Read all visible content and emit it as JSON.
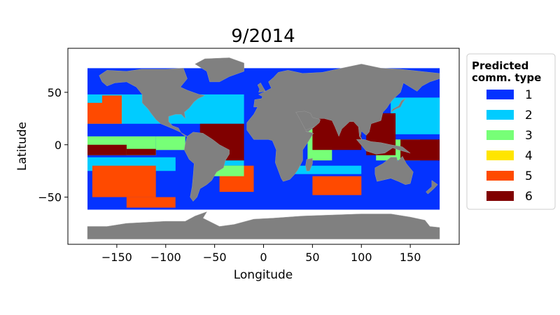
{
  "chart_data": {
    "type": "scatter",
    "title": "9/2014",
    "xlabel": "Longitude",
    "ylabel": "Latitude",
    "xlim": [
      -200,
      200
    ],
    "ylim": [
      -95,
      92
    ],
    "xticks": [
      -150,
      -100,
      -50,
      0,
      50,
      100,
      150
    ],
    "yticks": [
      -50,
      0,
      50
    ],
    "xtick_labels": [
      "−150",
      "−100",
      "−50",
      "0",
      "50",
      "100",
      "150"
    ],
    "ytick_labels": [
      "−50",
      "0",
      "50"
    ],
    "grid": false,
    "legend": {
      "title_line1": "Predicted",
      "title_line2": "comm. type",
      "placement": "outside-right",
      "entries": [
        {
          "label": "1",
          "color": "#0433FF"
        },
        {
          "label": "2",
          "color": "#00CCFF"
        },
        {
          "label": "3",
          "color": "#77FF77"
        },
        {
          "label": "4",
          "color": "#FFE500"
        },
        {
          "label": "5",
          "color": "#FF4A00"
        },
        {
          "label": "6",
          "color": "#800000"
        }
      ]
    },
    "land_color": "#808080",
    "regions": [
      {
        "type": "1",
        "lon": [
          -180,
          180
        ],
        "lat": [
          -62,
          73
        ]
      },
      {
        "type": "2",
        "lon": [
          -180,
          -20
        ],
        "lat": [
          20,
          48
        ]
      },
      {
        "type": "2",
        "lon": [
          -180,
          -90
        ],
        "lat": [
          -25,
          -12
        ]
      },
      {
        "type": "2",
        "lon": [
          130,
          180
        ],
        "lat": [
          10,
          45
        ]
      },
      {
        "type": "2",
        "lon": [
          30,
          100
        ],
        "lat": [
          -28,
          -20
        ]
      },
      {
        "type": "2",
        "lon": [
          -60,
          -20
        ],
        "lat": [
          -22,
          -10
        ]
      },
      {
        "type": "5",
        "lon": [
          -180,
          -145
        ],
        "lat": [
          20,
          40
        ]
      },
      {
        "type": "5",
        "lon": [
          -165,
          -145
        ],
        "lat": [
          38,
          47
        ]
      },
      {
        "type": "5",
        "lon": [
          -175,
          -110
        ],
        "lat": [
          -50,
          -20
        ]
      },
      {
        "type": "5",
        "lon": [
          -45,
          -10
        ],
        "lat": [
          -45,
          -20
        ]
      },
      {
        "type": "5",
        "lon": [
          50,
          100
        ],
        "lat": [
          -48,
          -30
        ]
      },
      {
        "type": "5",
        "lon": [
          -140,
          -90
        ],
        "lat": [
          -60,
          -50
        ]
      },
      {
        "type": "3",
        "lon": [
          -180,
          -110
        ],
        "lat": [
          -10,
          8
        ]
      },
      {
        "type": "3",
        "lon": [
          -110,
          -80
        ],
        "lat": [
          -5,
          8
        ]
      },
      {
        "type": "3",
        "lon": [
          -60,
          -20
        ],
        "lat": [
          -30,
          -20
        ]
      },
      {
        "type": "3",
        "lon": [
          45,
          70
        ],
        "lat": [
          -15,
          15
        ]
      },
      {
        "type": "3",
        "lon": [
          115,
          160
        ],
        "lat": [
          -15,
          5
        ]
      },
      {
        "type": "6",
        "lon": [
          -180,
          -140
        ],
        "lat": [
          -10,
          0
        ]
      },
      {
        "type": "6",
        "lon": [
          -140,
          -110
        ],
        "lat": [
          -10,
          -4
        ]
      },
      {
        "type": "6",
        "lon": [
          -65,
          -20
        ],
        "lat": [
          -15,
          20
        ]
      },
      {
        "type": "6",
        "lon": [
          50,
          100
        ],
        "lat": [
          -5,
          25
        ]
      },
      {
        "type": "6",
        "lon": [
          105,
          135
        ],
        "lat": [
          -10,
          30
        ]
      },
      {
        "type": "6",
        "lon": [
          140,
          180
        ],
        "lat": [
          -15,
          5
        ]
      }
    ]
  }
}
